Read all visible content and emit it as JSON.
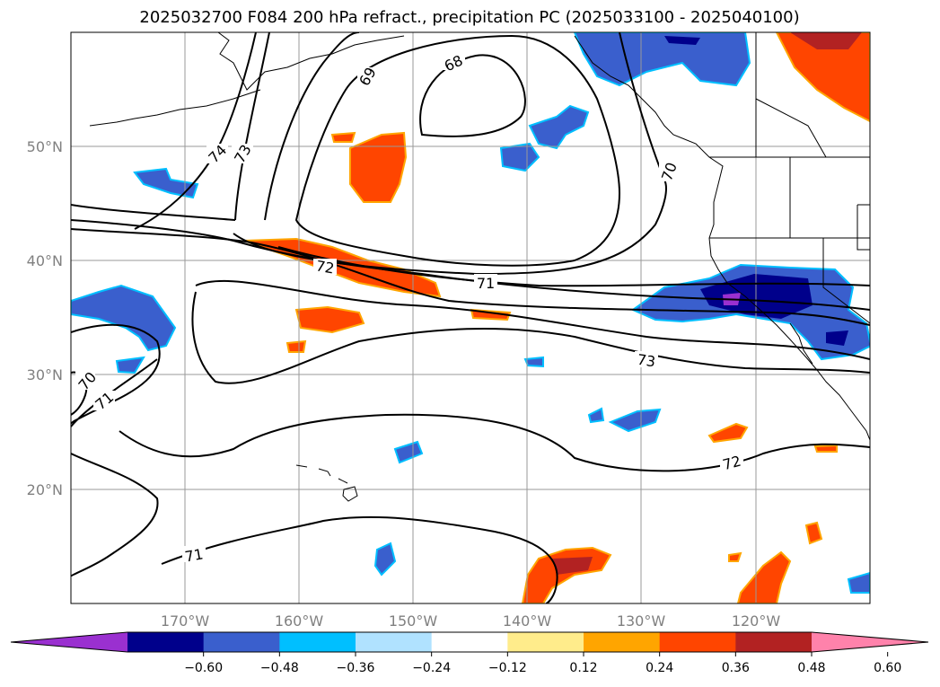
{
  "title": "2025032700 F084 200 hPa refract., precipitation PC (2025033100 - 2025040100)",
  "map": {
    "extent": {
      "lon": [
        -180,
        -110
      ],
      "lat": [
        10,
        60
      ]
    },
    "lat_ticks": [
      {
        "lat": 50,
        "label": "50°N"
      },
      {
        "lat": 40,
        "label": "40°N"
      },
      {
        "lat": 30,
        "label": "30°N"
      },
      {
        "lat": 20,
        "label": "20°N"
      }
    ],
    "lon_ticks": [
      {
        "lon": -170,
        "label": "170°W"
      },
      {
        "lon": -160,
        "label": "160°W"
      },
      {
        "lon": -150,
        "label": "150°W"
      },
      {
        "lon": -140,
        "label": "140°W"
      },
      {
        "lon": -130,
        "label": "130°W"
      },
      {
        "lon": -120,
        "label": "120°W"
      }
    ],
    "contour_labels": [
      "68",
      "69",
      "70",
      "71",
      "72",
      "73",
      "74"
    ]
  },
  "colorbar": {
    "ticks": [
      "−0.60",
      "−0.48",
      "−0.36",
      "−0.24",
      "−0.12",
      "0.12",
      "0.24",
      "0.36",
      "0.48",
      "0.60"
    ],
    "colors": [
      "#9a30d0",
      "#00008b",
      "#3a5fcd",
      "#00bfff",
      "#b0e2ff",
      "#ffffff",
      "#ffec8b",
      "#ffa500",
      "#ff4500",
      "#b22222",
      "#ff82ab"
    ]
  }
}
